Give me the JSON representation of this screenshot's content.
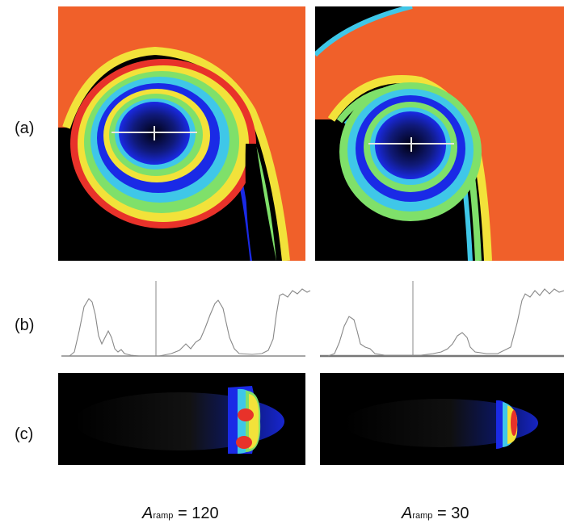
{
  "figure": {
    "row_labels": {
      "a": "(a)",
      "b": "(b)",
      "c": "(c)"
    },
    "columns": [
      {
        "symbol": "A",
        "subscript": "ramp",
        "equals": "= 120"
      },
      {
        "symbol": "A",
        "subscript": "ramp",
        "equals": "= 30"
      }
    ]
  },
  "colors": {
    "background_dark": "#000000",
    "blue": "#1a2ae6",
    "cyan": "#3fc7e8",
    "green": "#7fe06a",
    "yellow": "#f2e23a",
    "orange": "#f0602a",
    "red": "#e8322a",
    "profile_line": "#888888"
  }
}
